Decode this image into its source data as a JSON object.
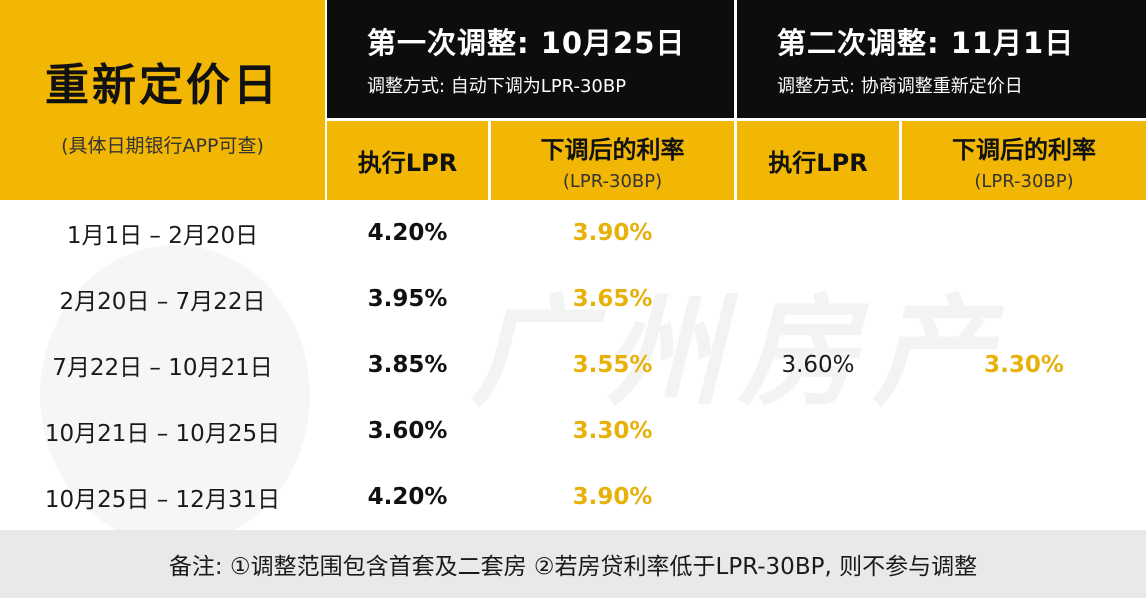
{
  "title": {
    "main": "重新定价日",
    "sub": "(具体日期银行APP可查)"
  },
  "rounds": [
    {
      "title": "第一次调整: 10月25日",
      "method": "调整方式: 自动下调为LPR-30BP"
    },
    {
      "title": "第二次调整: 11月1日",
      "method": "调整方式: 协商调整重新定价日"
    }
  ],
  "columns": {
    "lpr": "执行LPR",
    "rate": "下调后的利率",
    "rate_sub": "(LPR-30BP)"
  },
  "rows": [
    {
      "date": "1月1日 – 2月20日",
      "lpr": "4.20%",
      "rate": "3.90%"
    },
    {
      "date": "2月20日 – 7月22日",
      "lpr": "3.95%",
      "rate": "3.65%"
    },
    {
      "date": "7月22日 – 10月21日",
      "lpr": "3.85%",
      "rate": "3.55%"
    },
    {
      "date": "10月21日 – 10月25日",
      "lpr": "3.60%",
      "rate": "3.30%"
    },
    {
      "date": "10月25日 – 12月31日",
      "lpr": "4.20%",
      "rate": "3.90%"
    }
  ],
  "round2_values": {
    "lpr": "3.60%",
    "rate": "3.30%"
  },
  "watermark": "广州房产",
  "footer": "备注: ①调整范围包含首套及二套房 ②若房贷利率低于LPR-30BP, 则不参与调整",
  "colors": {
    "accent": "#f2b705",
    "header_dark": "#0d0d0d",
    "rate_text": "#e8b10a",
    "footer_bg": "#e9e9e9"
  }
}
